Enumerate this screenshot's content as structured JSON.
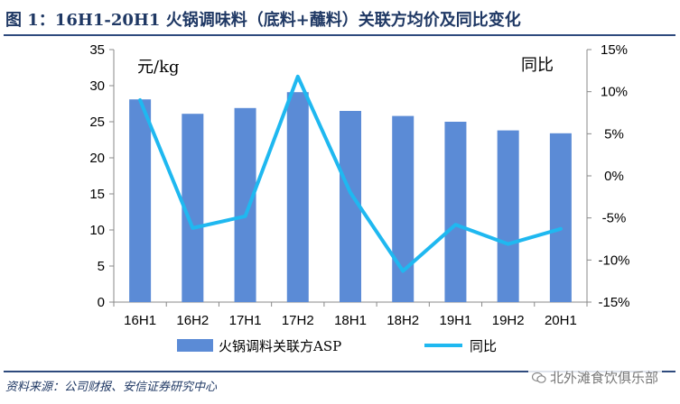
{
  "header": {
    "title": "图 1：16H1-20H1 火锅调味料（底料+蘸料）关联方均价及同比变化"
  },
  "footer": {
    "source": "资料来源：公司财报、安信证券研究中心",
    "watermark": "北外滩食饮俱乐部",
    "watermark_icon": "wechat-icon"
  },
  "chart_data": {
    "type": "bar",
    "categories": [
      "16H1",
      "16H2",
      "17H1",
      "17H2",
      "18H1",
      "18H2",
      "19H1",
      "19H2",
      "20H1"
    ],
    "series": [
      {
        "name": "火锅调料关联方ASP",
        "type": "bar",
        "axis": "left",
        "color": "#5b8bd6",
        "values": [
          28.1,
          26.1,
          26.9,
          29.1,
          26.5,
          25.8,
          25.0,
          23.8,
          23.4
        ]
      },
      {
        "name": "同比",
        "type": "line",
        "axis": "right",
        "color": "#1fb8f0",
        "values": [
          9.0,
          -6.2,
          -4.8,
          11.8,
          -2.0,
          -11.3,
          -5.8,
          -8.1,
          -6.3
        ]
      }
    ],
    "left_axis": {
      "label": "元/kg",
      "ylim": [
        0,
        35
      ],
      "ticks": [
        "0",
        "5",
        "10",
        "15",
        "20",
        "25",
        "30",
        "35"
      ]
    },
    "right_axis": {
      "label": "同比",
      "ylim": [
        -15,
        15
      ],
      "ticks": [
        "-15%",
        "-10%",
        "-5%",
        "0%",
        "5%",
        "10%",
        "15%"
      ]
    },
    "grid": false,
    "legend_position": "bottom"
  }
}
